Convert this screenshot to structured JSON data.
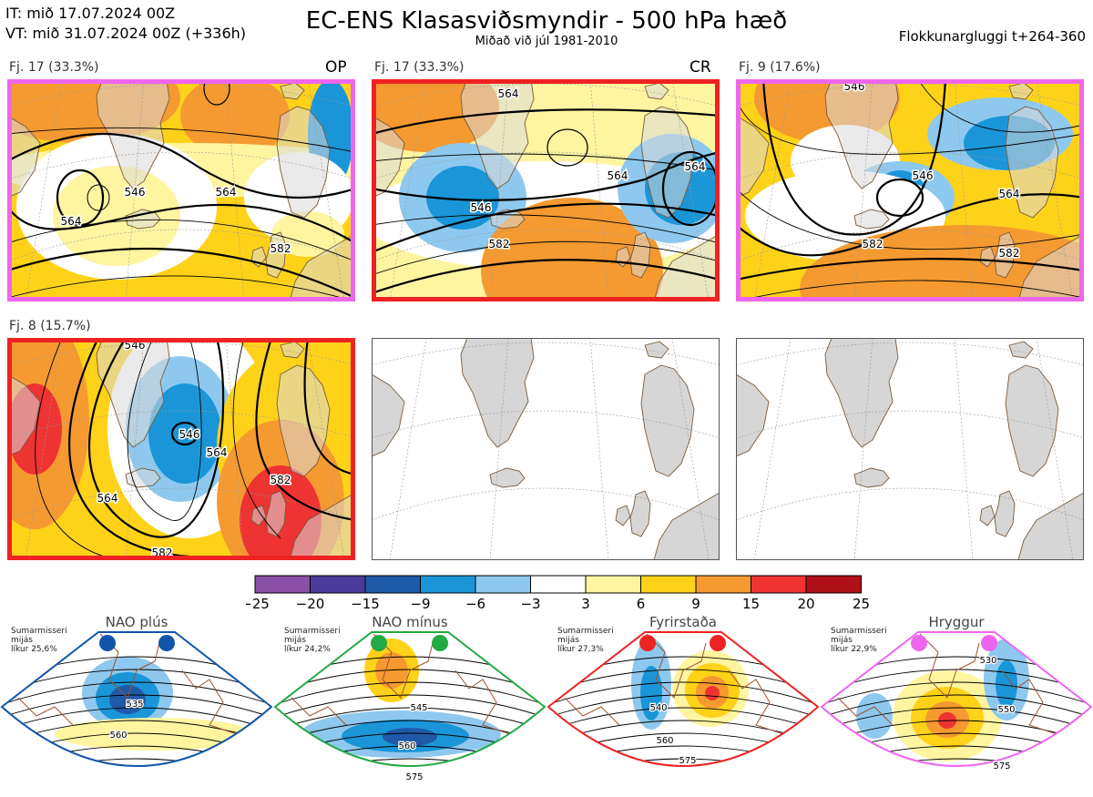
{
  "header": {
    "it_line": "IT: mið 17.07.2024 00Z",
    "vt_line": "VT: mið 31.07.2024 00Z  (+336h)",
    "title": "EC-ENS Klasasviðsmyndir - 500 hPa hæð",
    "subtitle": "Miðað við júl 1981-2010",
    "window": "Flokkunargluggi t+264-360"
  },
  "colors": {
    "frame_pink": "#ee66ee",
    "frame_red": "#ee2222",
    "land": "#d9d9d9",
    "coast": "#7a5a3a",
    "nao_plus": "#1155aa",
    "nao_minus": "#22aa44",
    "blocking": "#ee2222",
    "ridge": "#ee66ee"
  },
  "panels": [
    {
      "label": "Fj. 17 (33.3%)",
      "tag": "OP",
      "frame": "pink",
      "contours": [
        "564",
        "546",
        "564",
        "582"
      ]
    },
    {
      "label": "Fj. 17 (33.3%)",
      "tag": "CR",
      "frame": "red",
      "contours": [
        "564",
        "546",
        "564",
        "582",
        "564"
      ]
    },
    {
      "label": "Fj. 9 (17.6%)",
      "tag": "",
      "frame": "pink",
      "contours": [
        "546",
        "546",
        "564",
        "582",
        "582"
      ]
    },
    {
      "label": "Fj. 8 (15.7%)",
      "tag": "",
      "frame": "red",
      "contours": [
        "546",
        "546",
        "564",
        "564",
        "582",
        "582"
      ]
    },
    {
      "label": "",
      "tag": "",
      "frame": "none",
      "contours": []
    },
    {
      "label": "",
      "tag": "",
      "frame": "none",
      "contours": []
    }
  ],
  "colorbar": {
    "ticks": [
      "−25",
      "−20",
      "−15",
      "−9",
      "−6",
      "−3",
      "3",
      "6",
      "9",
      "15",
      "20",
      "25"
    ],
    "colors": [
      "#8a4fa6",
      "#4a3a9a",
      "#1f5aa8",
      "#1a96d8",
      "#8ec8ee",
      "#ffffff",
      "#fff5a0",
      "#ffd21a",
      "#f59a30",
      "#ee3333",
      "#b0101a"
    ]
  },
  "regimes": [
    {
      "name": "NAO plús",
      "season": "Sumarmisseri",
      "clim": "mijás",
      "prob": "líkur 25,6%",
      "color": "nao_plus",
      "contours": [
        "535",
        "560"
      ]
    },
    {
      "name": "NAO mínus",
      "season": "Sumarmisseri",
      "clim": "mijás",
      "prob": "líkur 24,2%",
      "color": "nao_minus",
      "contours": [
        "545",
        "560",
        "575"
      ]
    },
    {
      "name": "Fyrirstaða",
      "season": "Sumarmisseri",
      "clim": "mijás",
      "prob": "líkur 27,3%",
      "color": "blocking",
      "contours": [
        "540",
        "560",
        "575"
      ]
    },
    {
      "name": "Hryggur",
      "season": "Sumarmisseri",
      "clim": "mijás",
      "prob": "líkur 22,9%",
      "color": "ridge",
      "contours": [
        "530",
        "550",
        "575"
      ]
    }
  ]
}
